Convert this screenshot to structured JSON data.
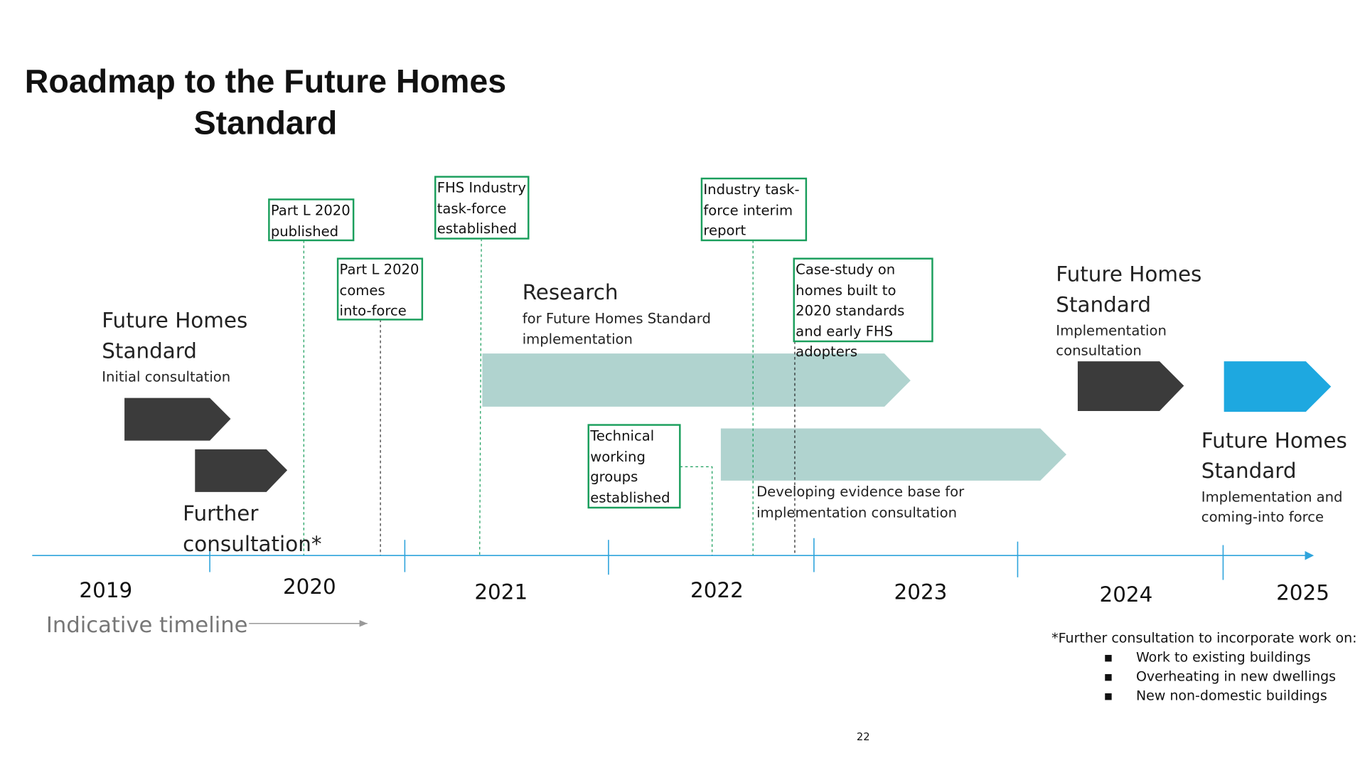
{
  "title_line1": "Roadmap to the Future Homes",
  "title_line2": "Standard",
  "years": [
    "2019",
    "2020",
    "2021",
    "2022",
    "2023",
    "2024",
    "2025"
  ],
  "timeline_label": "Indicative timeline",
  "colors": {
    "box_border": "#1a9e5c",
    "teal": "#b0d3cf",
    "dark": "#3b3b3b",
    "blue": "#1ea8e0",
    "axis": "#2fa4dc"
  },
  "phases": {
    "initial": {
      "title1": "Future Homes",
      "title2": "Standard",
      "sub": "Initial consultation"
    },
    "further": {
      "title1": "Further",
      "title2": "consultation*"
    },
    "research": {
      "title": "Research",
      "sub1": "for Future Homes Standard",
      "sub2": "implementation"
    },
    "evidence": {
      "line1": "Developing evidence base for",
      "line2": "implementation consultation"
    },
    "impl_consult": {
      "title1": "Future Homes",
      "title2": "Standard",
      "sub1": "Implementation",
      "sub2": "consultation"
    },
    "impl_force": {
      "title1": "Future Homes",
      "title2": "Standard",
      "sub1": "Implementation and",
      "sub2": "coming-into force"
    }
  },
  "milestones": [
    {
      "label": "Part L 2020 published"
    },
    {
      "label": "Part L 2020 comes into-force"
    },
    {
      "label": "FHS Industry task-force established"
    },
    {
      "label": "Industry task-force interim report"
    },
    {
      "label": "Case-study on homes built to 2020 standards and early FHS adopters"
    },
    {
      "label": "Technical working groups established"
    }
  ],
  "footnote": {
    "heading": "*Further consultation to incorporate work on:",
    "items": [
      "Work to existing buildings",
      "Overheating in new dwellings",
      "New non-domestic buildings"
    ]
  },
  "page_number": "22"
}
